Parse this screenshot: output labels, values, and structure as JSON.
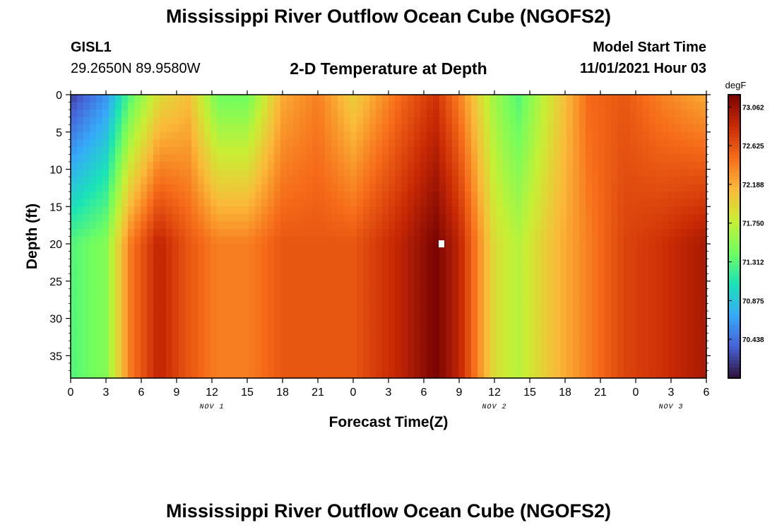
{
  "header": {
    "title": "Mississippi River Outflow Ocean Cube (NGOFS2)",
    "station": "GISL1",
    "coords": "29.2650N  89.9580W",
    "subtitle": "2-D Temperature at Depth",
    "model_start_label": "Model Start Time",
    "model_start_value": "11/01/2021 Hour 03"
  },
  "footer": {
    "title": "Mississippi River Outflow Ocean Cube (NGOFS2)"
  },
  "chart_data": {
    "type": "heatmap",
    "title": "2-D Temperature at Depth",
    "xlabel": "Forecast Time(Z)",
    "ylabel": "Depth (ft)",
    "x_range_hours": [
      0,
      54
    ],
    "x_tick_labels": [
      "0",
      "3",
      "6",
      "9",
      "12",
      "15",
      "18",
      "21",
      "0",
      "3",
      "6",
      "9",
      "12",
      "15",
      "18",
      "21",
      "0",
      "3",
      "6"
    ],
    "date_labels": [
      {
        "label": "NOV 1",
        "hour": 12
      },
      {
        "label": "NOV 2",
        "hour": 36
      },
      {
        "label": "NOV 3",
        "hour": 51
      }
    ],
    "y_range_ft": [
      0,
      38
    ],
    "y_ticks": [
      0,
      5,
      10,
      15,
      20,
      25,
      30,
      35
    ],
    "colorbar": {
      "unit": "degF",
      "min": 70.0,
      "max": 73.2,
      "ticks": [
        "73.062",
        "72.625",
        "72.188",
        "71.750",
        "71.312",
        "70.875",
        "70.438"
      ],
      "colors": [
        "#30123b",
        "#4662d7",
        "#36aaf9",
        "#1ae4b6",
        "#72fe5e",
        "#c8ef34",
        "#faba39",
        "#f66b19",
        "#ca2a04",
        "#7a0403"
      ]
    },
    "marker": {
      "hour": 31.5,
      "depth": 20
    },
    "approx_columns_hour_temp": [
      {
        "hour": 0,
        "surface": 70.2,
        "bottom": 71.3
      },
      {
        "hour": 3,
        "surface": 70.6,
        "bottom": 71.5
      },
      {
        "hour": 5,
        "surface": 71.3,
        "bottom": 72.4
      },
      {
        "hour": 7.5,
        "surface": 71.9,
        "bottom": 72.9
      },
      {
        "hour": 10,
        "surface": 72.1,
        "bottom": 72.6
      },
      {
        "hour": 12.5,
        "surface": 71.4,
        "bottom": 72.4
      },
      {
        "hour": 15,
        "surface": 71.4,
        "bottom": 72.4
      },
      {
        "hour": 18,
        "surface": 72.2,
        "bottom": 72.6
      },
      {
        "hour": 21,
        "surface": 72.4,
        "bottom": 72.6
      },
      {
        "hour": 24,
        "surface": 72.0,
        "bottom": 72.6
      },
      {
        "hour": 28,
        "surface": 72.5,
        "bottom": 72.9
      },
      {
        "hour": 31,
        "surface": 72.8,
        "bottom": 73.2
      },
      {
        "hour": 33,
        "surface": 72.4,
        "bottom": 72.9
      },
      {
        "hour": 36,
        "surface": 71.6,
        "bottom": 71.9
      },
      {
        "hour": 38,
        "surface": 71.3,
        "bottom": 71.7
      },
      {
        "hour": 41,
        "surface": 71.9,
        "bottom": 72.1
      },
      {
        "hour": 44,
        "surface": 72.5,
        "bottom": 72.4
      },
      {
        "hour": 47,
        "surface": 72.6,
        "bottom": 72.7
      },
      {
        "hour": 50,
        "surface": 72.4,
        "bottom": 72.8
      },
      {
        "hour": 54,
        "surface": 72.2,
        "bottom": 73.0
      }
    ]
  }
}
